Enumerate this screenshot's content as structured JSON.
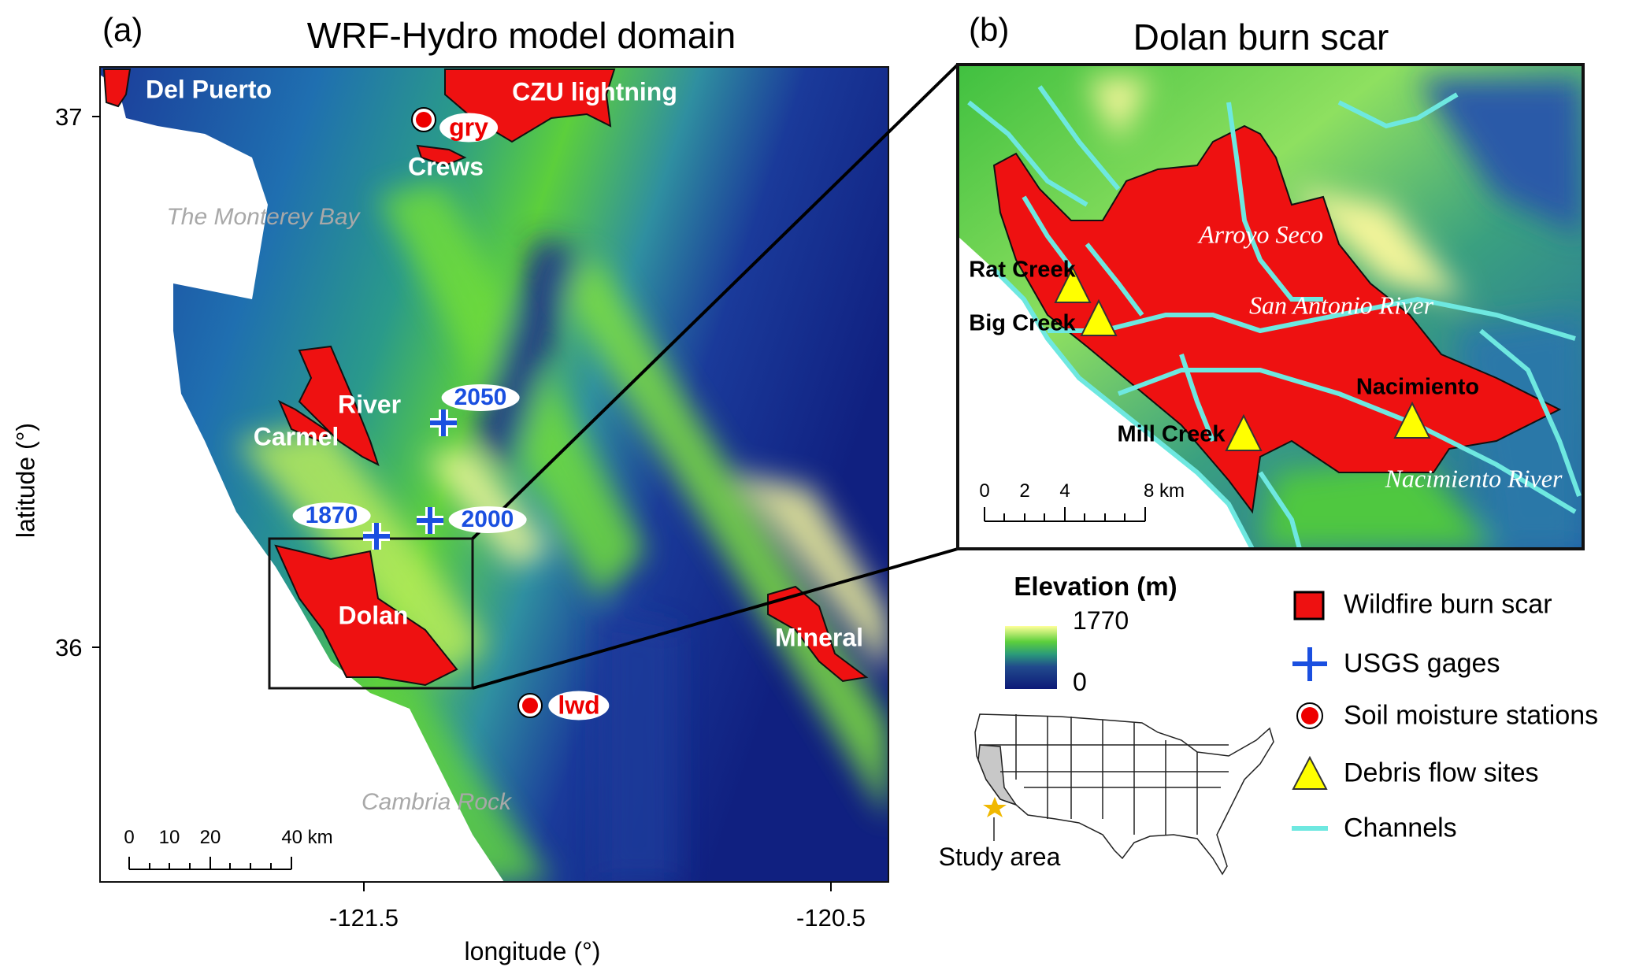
{
  "panel_a": {
    "label": "(a)",
    "title": "WRF-Hydro model domain",
    "xlabel": "longitude (°)",
    "ylabel": "latitude (°)",
    "x_ticks": [
      "-121.5",
      "-120.5"
    ],
    "y_ticks": [
      "37",
      "36"
    ],
    "burn_scars": [
      "Del Puerto",
      "CZU lightning",
      "Crews",
      "River",
      "Carmel",
      "Dolan",
      "Mineral"
    ],
    "places": [
      "The Monterey Bay",
      "Cambria Rock"
    ],
    "usgs_gages": [
      "2050",
      "1870",
      "2000"
    ],
    "soil_stations": [
      "gry",
      "lwd"
    ],
    "scale_bar": {
      "labels": [
        "0",
        "10",
        "20",
        "40 km"
      ]
    }
  },
  "panel_b": {
    "label": "(b)",
    "title": "Dolan burn scar",
    "debris_sites": [
      "Rat Creek",
      "Big Creek",
      "Mill Creek",
      "Nacimiento"
    ],
    "rivers": [
      "Arroyo Seco",
      "San Antonio River",
      "Nacimiento River"
    ],
    "scale_bar": {
      "labels": [
        "0",
        "2",
        "4",
        "8 km"
      ]
    }
  },
  "legend": {
    "elevation_title": "Elevation (m)",
    "elevation_max": "1770",
    "elevation_min": "0",
    "items": [
      {
        "label": "Wildfire burn scar",
        "icon": "red-square"
      },
      {
        "label": "USGS gages",
        "icon": "blue-plus"
      },
      {
        "label": "Soil moisture stations",
        "icon": "red-circle"
      },
      {
        "label": "Debris flow sites",
        "icon": "yellow-triangle"
      },
      {
        "label": "Channels",
        "icon": "cyan-line"
      }
    ],
    "inset_label": "Study area"
  },
  "colors": {
    "burn": "#ee1111",
    "gage": "#1a4fe0",
    "channel": "#6ee8e0",
    "debris": "#ffff00",
    "elev_low": "#0d1a78",
    "elev_mid": "#3cc83c",
    "elev_high": "#ffff99"
  }
}
